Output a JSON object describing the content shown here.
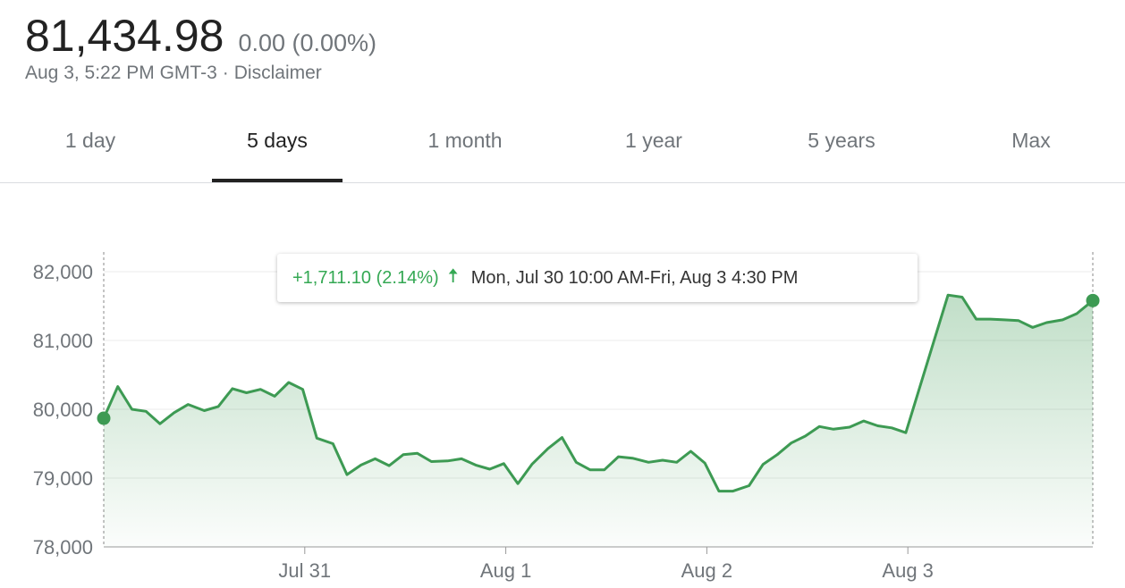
{
  "quote": {
    "price": "81,434.98",
    "change": "0.00 (0.00%)",
    "timestamp": "Aug 3, 5:22 PM GMT-3",
    "separator": "·",
    "disclaimer": "Disclaimer"
  },
  "tabs": [
    {
      "label": "1 day",
      "active": false
    },
    {
      "label": "5 days",
      "active": true
    },
    {
      "label": "1 month",
      "active": false
    },
    {
      "label": "1 year",
      "active": false
    },
    {
      "label": "5 years",
      "active": false
    },
    {
      "label": "Max",
      "active": false
    }
  ],
  "tooltip": {
    "change": "+1,711.10 (2.14%)",
    "arrow_icon": "up-arrow-icon",
    "range": "Mon, Jul 30 10:00 AM-Fri, Aug 3 4:30 PM"
  },
  "colors": {
    "line": "#3d9a53",
    "positive": "#34a853",
    "grid": "#ebebeb",
    "axis": "#999999"
  },
  "chart_data": {
    "type": "area",
    "y_ticks": [
      78000,
      79000,
      80000,
      81000,
      82000
    ],
    "y_tick_labels": [
      "78,000",
      "79,000",
      "80,000",
      "81,000",
      "82,000"
    ],
    "ylim": [
      78000,
      82000
    ],
    "x_tick_labels": [
      "Jul 31",
      "Aug 1",
      "Aug 2",
      "Aug 3"
    ],
    "x_tick_positions": [
      1,
      2,
      3,
      4
    ],
    "xlim": [
      0,
      4.92
    ],
    "grid": true,
    "series": [
      {
        "values": [
          [
            0,
            79870
          ],
          [
            0.07,
            80330
          ],
          [
            0.14,
            80000
          ],
          [
            0.21,
            79970
          ],
          [
            0.28,
            79790
          ],
          [
            0.35,
            79950
          ],
          [
            0.42,
            80070
          ],
          [
            0.5,
            79980
          ],
          [
            0.57,
            80040
          ],
          [
            0.64,
            80300
          ],
          [
            0.71,
            80240
          ],
          [
            0.78,
            80290
          ],
          [
            0.85,
            80190
          ],
          [
            0.92,
            80390
          ],
          [
            0.99,
            80290
          ],
          [
            1.06,
            79580
          ],
          [
            1.14,
            79500
          ],
          [
            1.21,
            79050
          ],
          [
            1.28,
            79190
          ],
          [
            1.35,
            79280
          ],
          [
            1.42,
            79180
          ],
          [
            1.49,
            79340
          ],
          [
            1.56,
            79360
          ],
          [
            1.63,
            79240
          ],
          [
            1.71,
            79250
          ],
          [
            1.78,
            79280
          ],
          [
            1.85,
            79190
          ],
          [
            1.92,
            79130
          ],
          [
            1.99,
            79210
          ],
          [
            2.06,
            78920
          ],
          [
            2.13,
            79200
          ],
          [
            2.21,
            79430
          ],
          [
            2.28,
            79590
          ],
          [
            2.35,
            79230
          ],
          [
            2.42,
            79120
          ],
          [
            2.49,
            79120
          ],
          [
            2.56,
            79310
          ],
          [
            2.63,
            79290
          ],
          [
            2.71,
            79230
          ],
          [
            2.78,
            79260
          ],
          [
            2.85,
            79230
          ],
          [
            2.92,
            79390
          ],
          [
            2.99,
            79220
          ],
          [
            3.06,
            78810
          ],
          [
            3.13,
            78810
          ],
          [
            3.21,
            78890
          ],
          [
            3.28,
            79200
          ],
          [
            3.35,
            79340
          ],
          [
            3.42,
            79510
          ],
          [
            3.49,
            79610
          ],
          [
            3.56,
            79750
          ],
          [
            3.63,
            79710
          ],
          [
            3.71,
            79740
          ],
          [
            3.78,
            79830
          ],
          [
            3.85,
            79760
          ],
          [
            3.92,
            79730
          ],
          [
            3.99,
            79660
          ],
          [
            4.2,
            81660
          ],
          [
            4.27,
            81630
          ],
          [
            4.34,
            81310
          ],
          [
            4.41,
            81310
          ],
          [
            4.48,
            81300
          ],
          [
            4.55,
            81290
          ],
          [
            4.62,
            81190
          ],
          [
            4.69,
            81260
          ],
          [
            4.77,
            81300
          ],
          [
            4.84,
            81390
          ],
          [
            4.92,
            81580
          ]
        ]
      }
    ]
  }
}
